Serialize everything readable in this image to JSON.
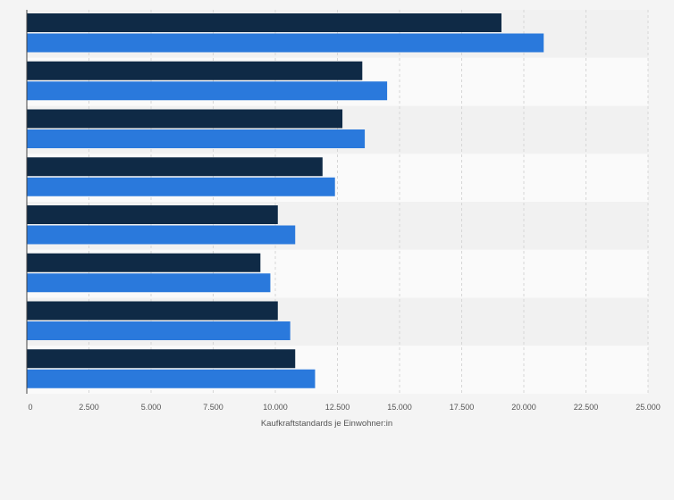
{
  "chart_data": {
    "type": "bar",
    "orientation": "horizontal",
    "categories": [
      "",
      "",
      "",
      "",
      "",
      "",
      "",
      ""
    ],
    "series": [
      {
        "color": "#0f2a46",
        "values": [
          19100,
          13500,
          12700,
          11900,
          10100,
          9400,
          10100,
          10800
        ]
      },
      {
        "color": "#2a79dc",
        "values": [
          20800,
          14500,
          13600,
          12400,
          10800,
          9800,
          10600,
          11600
        ]
      }
    ],
    "xlabel": "Kaufkraftstandards je Einwohner:in",
    "xlim": [
      0,
      25000
    ],
    "xticks": [
      0,
      2500,
      5000,
      7500,
      10000,
      12500,
      15000,
      17500,
      20000,
      22500,
      25000
    ],
    "xtick_labels": [
      "0",
      "2.500",
      "5.000",
      "7.500",
      "10.000",
      "12.500",
      "15.000",
      "17.500",
      "20.000",
      "22.500",
      "25.000"
    ],
    "grid": true,
    "legend": "none"
  }
}
